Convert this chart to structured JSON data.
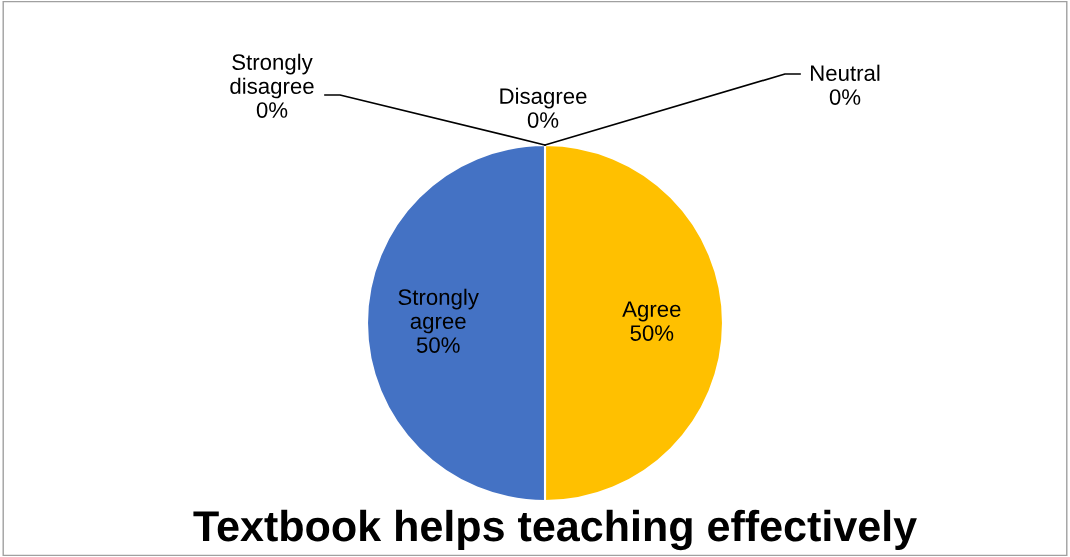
{
  "chart_data": {
    "type": "pie",
    "title": "Textbook helps teaching effectively",
    "categories": [
      "Strongly disagree",
      "Disagree",
      "Neutral",
      "Agree",
      "Strongly agree"
    ],
    "values": [
      0,
      0,
      0,
      50,
      50
    ],
    "colors": [
      "#5b9bd5",
      "#ed7d31",
      "#a5a5a5",
      "#ffc000",
      "#4472c4"
    ],
    "value_labels": [
      "0%",
      "0%",
      "0%",
      "50%",
      "50%"
    ],
    "legend": false
  }
}
